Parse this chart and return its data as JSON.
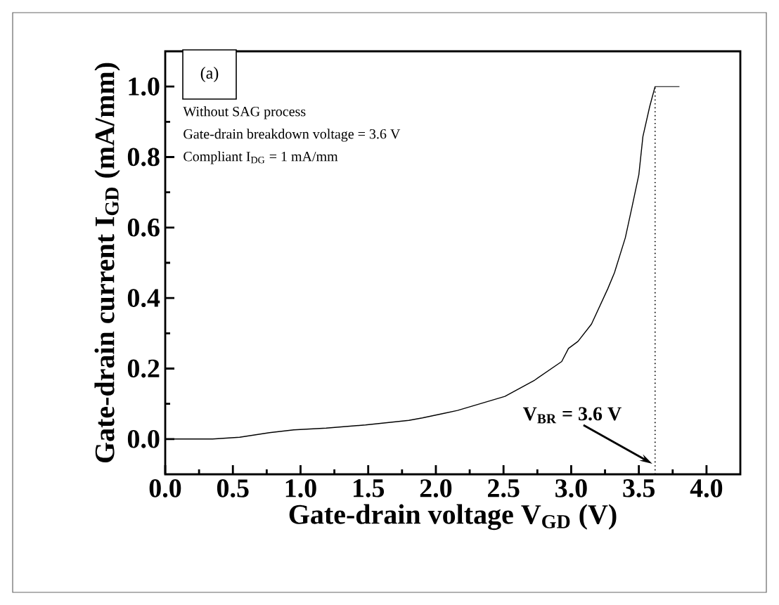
{
  "chart_data": {
    "type": "line",
    "xlabel": "Gate-drain voltage V$_{GD}$ (V)",
    "ylabel": "Gate-drain current I$_{GD}$ (mA/mm)",
    "xlim": [
      0,
      4.25
    ],
    "ylim": [
      -0.1,
      1.1
    ],
    "xticks": [
      {
        "value": 0,
        "label": "0.0"
      },
      0.5,
      {
        "value": 1,
        "label": "1.0"
      },
      1.5,
      {
        "value": 2,
        "label": "2.0"
      },
      2.5,
      {
        "value": 3,
        "label": "3.0"
      },
      3.5,
      {
        "value": 4,
        "label": "4.0"
      }
    ],
    "yticks": [
      {
        "value": 0,
        "label": "0.0"
      },
      0.2,
      0.4,
      0.6,
      0.8,
      {
        "value": 1,
        "label": "1.0"
      }
    ],
    "series": [
      {
        "color": "#000000",
        "x": [
          0,
          0.35,
          0.55,
          0.77,
          0.95,
          1.19,
          1.48,
          1.8,
          1.9,
          2.06,
          2.16,
          2.51,
          2.73,
          2.93,
          2.98,
          3.05,
          3.15,
          3.27,
          3.32,
          3.4,
          3.45,
          3.5,
          3.53,
          3.58,
          3.62,
          3.8
        ],
        "values": [
          0,
          0,
          0.005,
          0.018,
          0.026,
          0.031,
          0.04,
          0.053,
          0.06,
          0.073,
          0.081,
          0.121,
          0.167,
          0.22,
          0.257,
          0.277,
          0.326,
          0.426,
          0.472,
          0.571,
          0.659,
          0.75,
          0.858,
          0.943,
          1.0,
          1.0
        ]
      }
    ],
    "ref_lines": [
      {
        "axis": "x",
        "value": 3.62,
        "label": null,
        "line_style": "dotted",
        "color": "#000000"
      }
    ],
    "annotations": [
      "(a)",
      "Without SAG process",
      "Gate-drain breakdown voltage = 3.6 V",
      "Compliant I$_{DG}$ = 1 mA/mm",
      {
        "text": "V$_{BR}$ = 3.6 V",
        "x": 3.6,
        "y": -0.07
      }
    ],
    "grid": false,
    "marker": "none",
    "line_style": "solid"
  }
}
